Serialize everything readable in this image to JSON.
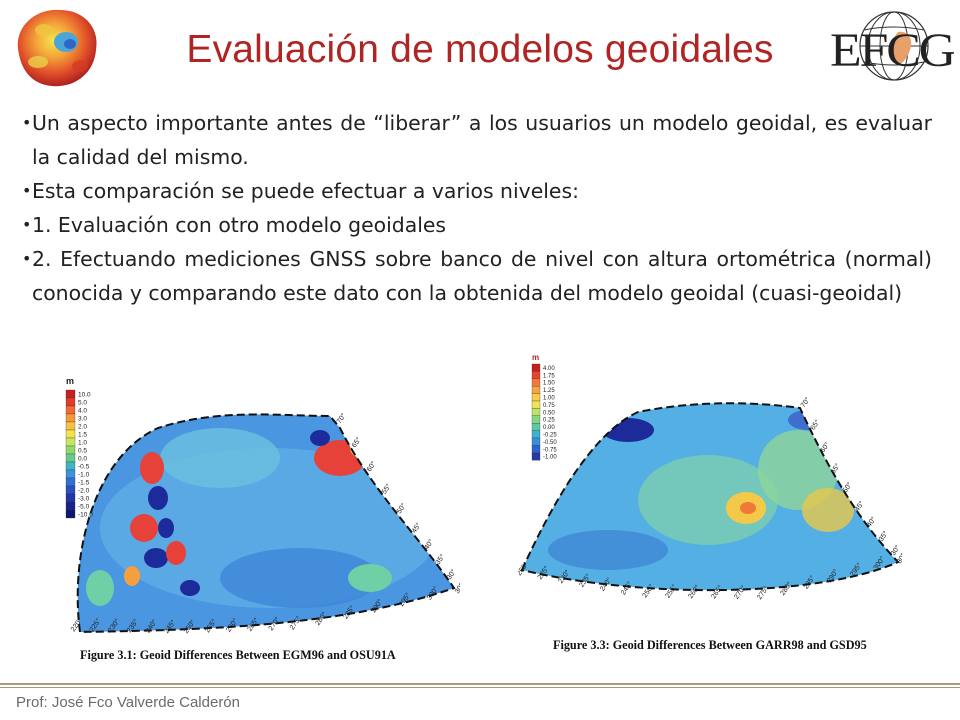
{
  "slide": {
    "title": "Evaluación de modelos geoidales",
    "logo_text": "EFCG",
    "bullets": [
      "Un aspecto importante antes de “liberar” a los usuarios un modelo geoidal, es evaluar la calidad del mismo.",
      "Esta comparación se puede efectuar a varios niveles:",
      "1. Evaluación con otro modelo geoidales",
      "2. Efectuando mediciones GNSS sobre banco de nivel con altura ortométrica (normal) conocida y comparando este dato con la obtenida del modelo geoidal (cuasi-geoidal)"
    ],
    "footer": "Prof: José Fco Valverde Calderón"
  },
  "figures": [
    {
      "caption": "Figure 3.1:  Geoid Differences Between EGM96 and OSU91A",
      "legend_unit": "m",
      "legend_values": [
        "10.0",
        "5.0",
        "4.0",
        "3.0",
        "2.0",
        "1.5",
        "1.0",
        "0.5",
        "0.0",
        "-0.5",
        "-1.0",
        "-1.5",
        "-2.0",
        "-3.0",
        "-5.0",
        "-10.0"
      ],
      "legend_colors": [
        "#c81e1e",
        "#e23b2a",
        "#f06a32",
        "#f59a38",
        "#f8c241",
        "#f3e14e",
        "#c8e660",
        "#8fd86f",
        "#63cc8e",
        "#3fb6c6",
        "#3b95de",
        "#2f6fd6",
        "#2a4fc4",
        "#2335a8",
        "#1a2290",
        "#101670"
      ],
      "lon_labels": [
        "220°",
        "225°",
        "230°",
        "235°",
        "240°",
        "245°",
        "250°",
        "255°",
        "260°",
        "265°",
        "270°",
        "275°",
        "280°",
        "285°",
        "290°",
        "295°",
        "300°",
        "305°"
      ],
      "lat_labels": [
        "70°",
        "65°",
        "60°",
        "55°",
        "50°",
        "45°",
        "40°",
        "35°",
        "30°"
      ]
    },
    {
      "caption": "Figure 3.3:  Geoid Differences Between GARR98 and GSD95",
      "legend_unit": "m",
      "legend_values": [
        "4.00",
        "1.75",
        "1.50",
        "1.25",
        "1.00",
        "0.75",
        "0.50",
        "0.25",
        "0.00",
        "-0.25",
        "-0.50",
        "-0.75",
        "-1.00"
      ],
      "legend_colors": [
        "#c81e1e",
        "#e8452c",
        "#f2793a",
        "#f6a640",
        "#f8cd48",
        "#efe357",
        "#bfe46a",
        "#86d680",
        "#5ccaa0",
        "#3cb3cf",
        "#3a8fdc",
        "#2f63cf",
        "#233aa8"
      ],
      "lon_labels": [
        "260°",
        "225°",
        "230°",
        "235°",
        "240°",
        "245°",
        "250°",
        "255°",
        "260°",
        "265°",
        "270°",
        "275°",
        "280°",
        "285°",
        "290°",
        "295°",
        "300°",
        "305°"
      ],
      "lat_labels": [
        "70°",
        "65°",
        "60°",
        "55°",
        "50°",
        "45°",
        "40°",
        "35°",
        "30°"
      ]
    }
  ]
}
